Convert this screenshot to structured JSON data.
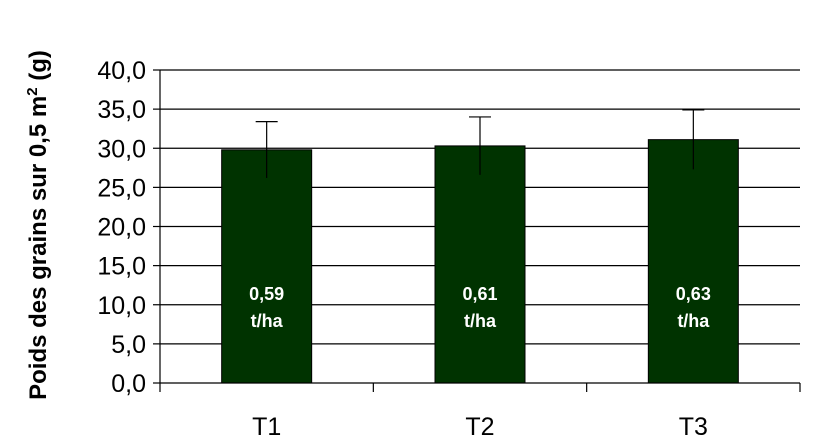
{
  "chart_data": {
    "type": "bar",
    "categories": [
      "T1",
      "T2",
      "T3"
    ],
    "values": [
      29.8,
      30.3,
      31.1
    ],
    "error": [
      3.6,
      3.7,
      3.8
    ],
    "bar_labels": [
      [
        "0,59",
        "t/ha"
      ],
      [
        "0,61",
        "t/ha"
      ],
      [
        "0,63",
        "t/ha"
      ]
    ],
    "ylabel": "Poids des grains sur 0,5 m",
    "ylabel_sup": "2",
    "ylabel_suffix": " (g)",
    "ylim": [
      0,
      40
    ],
    "yticks": [
      "0,0",
      "5,0",
      "10,0",
      "15,0",
      "20,0",
      "25,0",
      "30,0",
      "35,0",
      "40,0"
    ],
    "grid": true,
    "bar_color": "#003300"
  }
}
